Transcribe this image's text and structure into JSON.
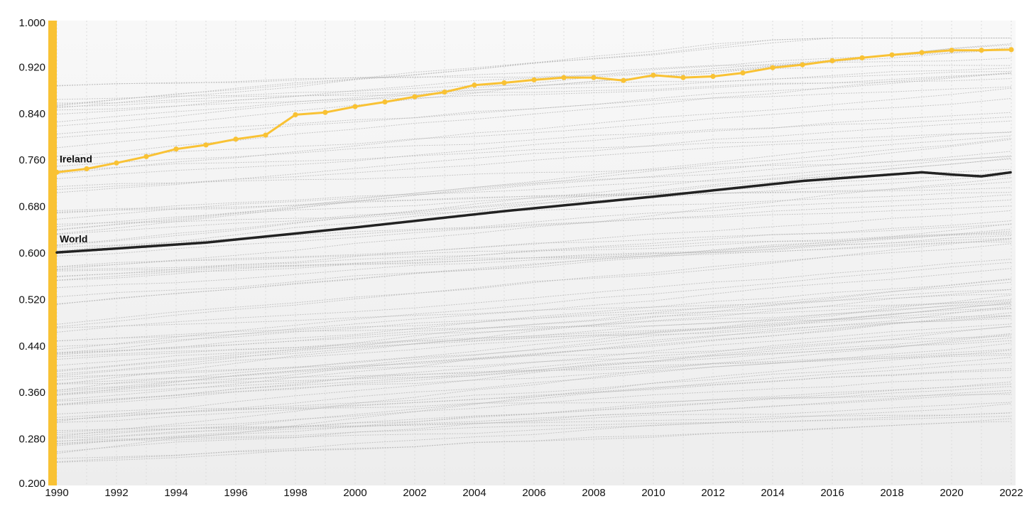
{
  "chart_data": {
    "type": "line",
    "title": "",
    "xlabel": "",
    "ylabel": "",
    "xlim": [
      1990,
      2022
    ],
    "ylim": [
      0.2,
      1.0
    ],
    "x_ticks": [
      "1990",
      "1992",
      "1994",
      "1996",
      "1998",
      "2000",
      "2002",
      "2004",
      "2006",
      "2008",
      "2010",
      "2012",
      "2014",
      "2016",
      "2018",
      "2020",
      "2022"
    ],
    "y_ticks": [
      "0.200",
      "0.280",
      "0.360",
      "0.440",
      "0.520",
      "0.600",
      "0.680",
      "0.760",
      "0.840",
      "0.920",
      "1.000"
    ],
    "grid": "vertical dotted",
    "background_series": "many countries, light grey dotted lines",
    "colors": {
      "highlight": "#F9C234",
      "world": "#222222",
      "background_lines": "#b5b5b5",
      "axis_bar": "#F9C234"
    },
    "series": [
      {
        "name": "Ireland",
        "x": [
          1990,
          1991,
          1992,
          1993,
          1994,
          1995,
          1996,
          1997,
          1998,
          1999,
          2000,
          2001,
          2002,
          2003,
          2004,
          2005,
          2006,
          2007,
          2008,
          2009,
          2010,
          2011,
          2012,
          2013,
          2014,
          2015,
          2016,
          2017,
          2018,
          2019,
          2020,
          2021,
          2022
        ],
        "values": [
          0.739,
          0.745,
          0.755,
          0.766,
          0.779,
          0.786,
          0.796,
          0.803,
          0.838,
          0.842,
          0.852,
          0.86,
          0.869,
          0.877,
          0.889,
          0.893,
          0.898,
          0.902,
          0.902,
          0.897,
          0.906,
          0.902,
          0.904,
          0.91,
          0.919,
          0.924,
          0.931,
          0.936,
          0.941,
          0.945,
          0.949,
          0.949,
          0.95
        ]
      },
      {
        "name": "World",
        "x": [
          1990,
          1995,
          2000,
          2005,
          2010,
          2015,
          2019,
          2020,
          2021,
          2022
        ],
        "values": [
          0.601,
          0.618,
          0.644,
          0.672,
          0.697,
          0.724,
          0.739,
          0.735,
          0.732,
          0.739
        ]
      }
    ]
  }
}
